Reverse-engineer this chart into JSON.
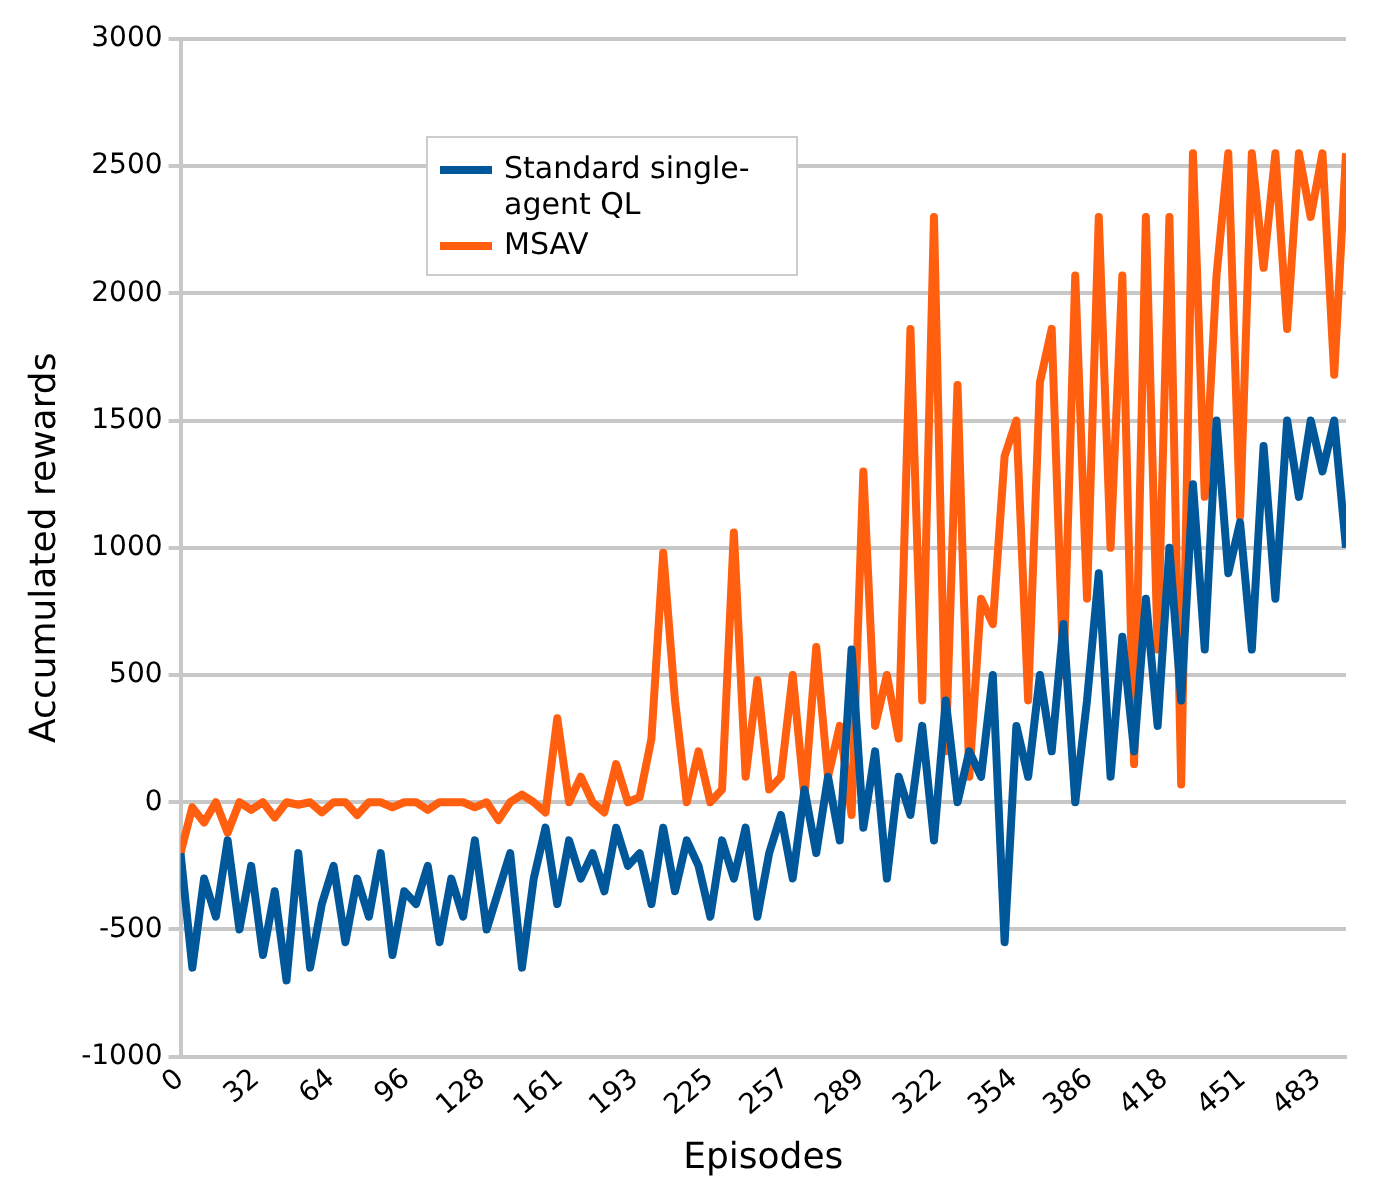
{
  "chart_data": {
    "type": "line",
    "xlabel": "Episodes",
    "ylabel": "Accumulated rewards",
    "x": [
      0,
      5,
      10,
      15,
      20,
      25,
      30,
      35,
      40,
      45,
      50,
      55,
      60,
      65,
      70,
      75,
      80,
      85,
      90,
      95,
      100,
      105,
      110,
      115,
      120,
      125,
      130,
      135,
      140,
      145,
      150,
      155,
      160,
      165,
      170,
      175,
      180,
      185,
      190,
      195,
      200,
      205,
      210,
      215,
      220,
      225,
      230,
      235,
      240,
      245,
      250,
      255,
      260,
      265,
      270,
      275,
      280,
      285,
      290,
      295,
      300,
      305,
      310,
      315,
      320,
      325,
      330,
      335,
      340,
      345,
      350,
      355,
      360,
      365,
      370,
      375,
      380,
      385,
      390,
      395,
      400,
      405,
      410,
      415,
      420,
      425,
      430,
      435,
      440,
      445,
      450,
      455,
      460,
      465,
      470,
      475,
      480,
      485,
      490,
      495
    ],
    "series": [
      {
        "name": "Standard single-agent QL",
        "color": "#00589a",
        "values": [
          -200,
          -650,
          -300,
          -450,
          -150,
          -500,
          -250,
          -600,
          -350,
          -700,
          -200,
          -650,
          -400,
          -250,
          -550,
          -300,
          -450,
          -200,
          -600,
          -350,
          -400,
          -250,
          -550,
          -300,
          -450,
          -150,
          -500,
          -350,
          -200,
          -650,
          -300,
          -100,
          -400,
          -150,
          -300,
          -200,
          -350,
          -100,
          -250,
          -200,
          -400,
          -100,
          -350,
          -150,
          -250,
          -450,
          -150,
          -300,
          -100,
          -450,
          -200,
          -50,
          -300,
          50,
          -200,
          100,
          -150,
          600,
          -100,
          200,
          -300,
          100,
          -50,
          300,
          -150,
          400,
          0,
          200,
          100,
          500,
          -550,
          300,
          100,
          500,
          200,
          700,
          0,
          400,
          900,
          100,
          650,
          200,
          800,
          300,
          1000,
          400,
          1250,
          600,
          1500,
          900,
          1100,
          600,
          1400,
          800,
          1500,
          1200,
          1500,
          1300,
          1500,
          1000
        ]
      },
      {
        "name": "MSAV",
        "color": "#ff5f0f",
        "values": [
          -200,
          -20,
          -80,
          0,
          -120,
          0,
          -30,
          0,
          -60,
          0,
          -10,
          0,
          -40,
          0,
          0,
          -50,
          0,
          0,
          -20,
          0,
          0,
          -30,
          0,
          0,
          0,
          -20,
          0,
          -70,
          0,
          30,
          0,
          -40,
          330,
          0,
          100,
          0,
          -40,
          150,
          0,
          20,
          250,
          980,
          400,
          0,
          200,
          0,
          50,
          1060,
          100,
          480,
          50,
          100,
          500,
          20,
          610,
          100,
          300,
          -50,
          1300,
          300,
          500,
          250,
          1860,
          400,
          2300,
          200,
          1640,
          100,
          800,
          700,
          1360,
          1500,
          400,
          1650,
          1860,
          500,
          2070,
          800,
          2300,
          1000,
          2070,
          150,
          2300,
          600,
          2300,
          70,
          2550,
          1200,
          2070,
          2550,
          1120,
          2550,
          2100,
          2550,
          1860,
          2550,
          2300,
          2550,
          1680,
          2550
        ]
      }
    ],
    "xlim": [
      0,
      495
    ],
    "xticks": [
      0,
      32,
      64,
      96,
      128,
      161,
      193,
      225,
      257,
      289,
      322,
      354,
      386,
      418,
      451,
      483
    ],
    "ylim": [
      -1000,
      3000
    ],
    "yticks": [
      -1000,
      -500,
      0,
      500,
      1000,
      1500,
      2000,
      2500,
      3000
    ],
    "grid": "y",
    "legend": "top left",
    "marker": "none",
    "line_style": "solid"
  }
}
